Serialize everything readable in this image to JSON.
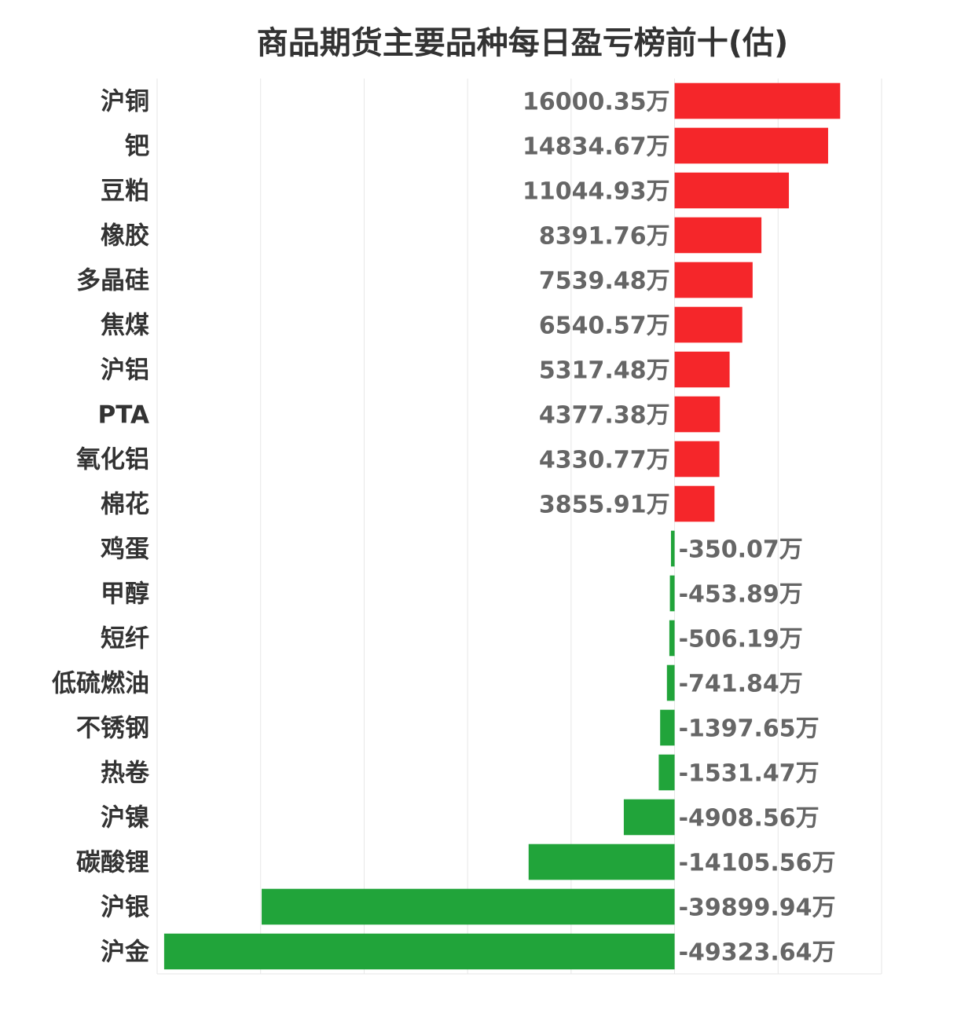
{
  "chart_data": {
    "type": "bar",
    "orientation": "horizontal",
    "title": "商品期货主要品种每日盈亏榜前十(估)",
    "unit_suffix": "万",
    "categories": [
      "沪铜",
      "钯",
      "豆粕",
      "橡胶",
      "多晶硅",
      "焦煤",
      "沪铝",
      "PTA",
      "氧化铝",
      "棉花",
      "鸡蛋",
      "甲醇",
      "短纤",
      "低硫燃油",
      "不锈钢",
      "热卷",
      "沪镍",
      "碳酸锂",
      "沪银",
      "沪金"
    ],
    "values": [
      16000.35,
      14834.67,
      11044.93,
      8391.76,
      7539.48,
      6540.57,
      5317.48,
      4377.38,
      4330.77,
      3855.91,
      -350.07,
      -453.89,
      -506.19,
      -741.84,
      -1397.65,
      -1531.47,
      -4908.56,
      -14105.56,
      -39899.94,
      -49323.64
    ],
    "value_labels": [
      "16000.35万",
      "14834.67万",
      "11044.93万",
      "8391.76万",
      "7539.48万",
      "6540.57万",
      "5317.48万",
      "4377.38万",
      "4330.77万",
      "3855.91万",
      "-350.07万",
      "-453.89万",
      "-506.19万",
      "-741.84万",
      "-1397.65万",
      "-1531.47万",
      "-4908.56万",
      "-14105.56万",
      "-39899.94万",
      "-49323.64万"
    ],
    "xlim": [
      -50000,
      20000
    ],
    "gridlines": [
      -50000,
      -40000,
      -30000,
      -20000,
      -10000,
      0,
      10000,
      20000
    ],
    "grid": true,
    "legend": "none",
    "colors": {
      "positive": "#f5262a",
      "negative": "#21a43a"
    }
  }
}
